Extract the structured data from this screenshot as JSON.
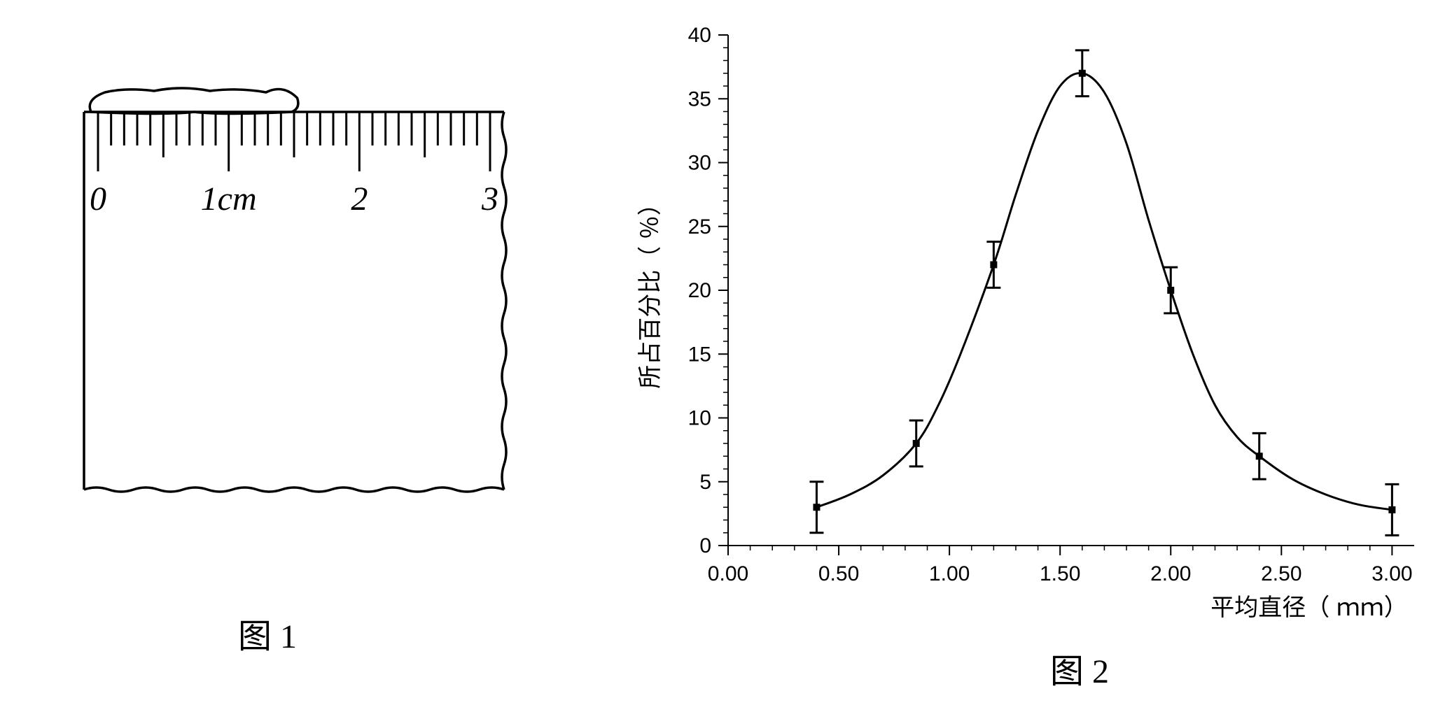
{
  "figure1": {
    "caption": "图 1",
    "ruler": {
      "labels": [
        "0",
        "1cm",
        "2",
        "3"
      ],
      "tick_count": 31,
      "tall_every": 10,
      "mid_every": 5
    }
  },
  "figure2": {
    "caption": "图 2",
    "chart": {
      "type": "line-with-errorbars",
      "xlabel": "平均直径（ ｍｍ）",
      "ylabel": "所占百分比（ ％）",
      "xlim": [
        0.0,
        3.1
      ],
      "ylim": [
        0,
        40
      ],
      "xticks": [
        0.0,
        0.5,
        1.0,
        1.5,
        2.0,
        2.5,
        3.0
      ],
      "xtick_labels": [
        "0.00",
        "0.50",
        "1.00",
        "1.50",
        "2.00",
        "2.50",
        "3.00"
      ],
      "yticks": [
        0,
        5,
        10,
        15,
        20,
        25,
        30,
        35,
        40
      ],
      "ytick_labels": [
        "0",
        "5",
        "10",
        "15",
        "20",
        "25",
        "30",
        "35",
        "40"
      ],
      "minor_tick_count_x": 5,
      "minor_tick_count_y": 5,
      "axis_color": "#000000",
      "tick_font_size": 30,
      "label_font_size": 34,
      "line_color": "#000000",
      "line_width": 3,
      "marker_color": "#000000",
      "marker_size": 10,
      "error_color": "#000000",
      "error_cap": 10,
      "error_width": 3,
      "data": [
        {
          "x": 0.4,
          "y": 3.0,
          "err": 2.0
        },
        {
          "x": 0.85,
          "y": 8.0,
          "err": 1.8
        },
        {
          "x": 1.2,
          "y": 22.0,
          "err": 1.8
        },
        {
          "x": 1.6,
          "y": 37.0,
          "err": 1.8
        },
        {
          "x": 2.0,
          "y": 20.0,
          "err": 1.8
        },
        {
          "x": 2.4,
          "y": 7.0,
          "err": 1.8
        },
        {
          "x": 3.0,
          "y": 2.8,
          "err": 2.0
        }
      ],
      "curve": [
        {
          "x": 0.4,
          "y": 3.0
        },
        {
          "x": 0.55,
          "y": 4.0
        },
        {
          "x": 0.7,
          "y": 5.5
        },
        {
          "x": 0.85,
          "y": 8.0
        },
        {
          "x": 0.95,
          "y": 11.0
        },
        {
          "x": 1.05,
          "y": 15.0
        },
        {
          "x": 1.2,
          "y": 22.0
        },
        {
          "x": 1.3,
          "y": 27.5
        },
        {
          "x": 1.4,
          "y": 32.5
        },
        {
          "x": 1.5,
          "y": 36.0
        },
        {
          "x": 1.6,
          "y": 37.0
        },
        {
          "x": 1.7,
          "y": 35.5
        },
        {
          "x": 1.8,
          "y": 31.5
        },
        {
          "x": 1.9,
          "y": 25.5
        },
        {
          "x": 2.0,
          "y": 20.0
        },
        {
          "x": 2.1,
          "y": 15.0
        },
        {
          "x": 2.2,
          "y": 11.0
        },
        {
          "x": 2.3,
          "y": 8.5
        },
        {
          "x": 2.4,
          "y": 7.0
        },
        {
          "x": 2.55,
          "y": 5.2
        },
        {
          "x": 2.7,
          "y": 4.0
        },
        {
          "x": 2.85,
          "y": 3.2
        },
        {
          "x": 3.0,
          "y": 2.8
        }
      ]
    }
  }
}
